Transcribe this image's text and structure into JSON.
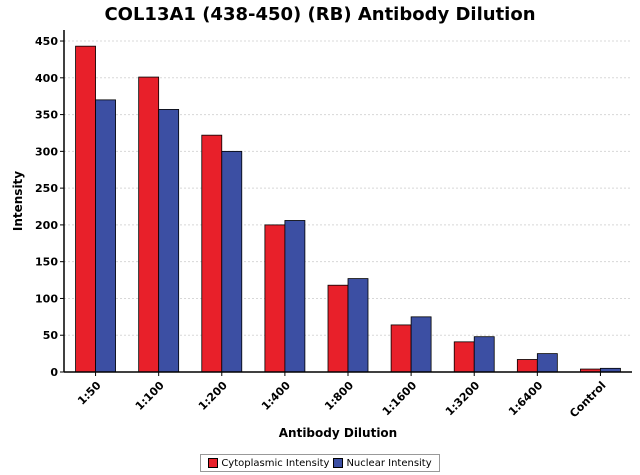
{
  "chart_data": {
    "type": "bar",
    "title": "COL13A1 (438-450) (RB) Antibody Dilution",
    "xlabel": "Antibody Dilution",
    "ylabel": "Intensity",
    "categories": [
      "1:50",
      "1:100",
      "1:200",
      "1:400",
      "1:800",
      "1:1600",
      "1:3200",
      "1:6400",
      "Control"
    ],
    "series": [
      {
        "name": "Cytoplasmic Intensity",
        "color": "#e8202a",
        "values": [
          443,
          401,
          322,
          200,
          118,
          64,
          41,
          17,
          4
        ]
      },
      {
        "name": "Nuclear Intensity",
        "color": "#3c4fa3",
        "values": [
          370,
          357,
          300,
          206,
          127,
          75,
          48,
          25,
          5
        ]
      }
    ],
    "ylim": [
      0,
      465
    ],
    "yticks": [
      0,
      50,
      100,
      150,
      200,
      250,
      300,
      350,
      400,
      450
    ],
    "grid": true,
    "legend_position": "bottom"
  }
}
